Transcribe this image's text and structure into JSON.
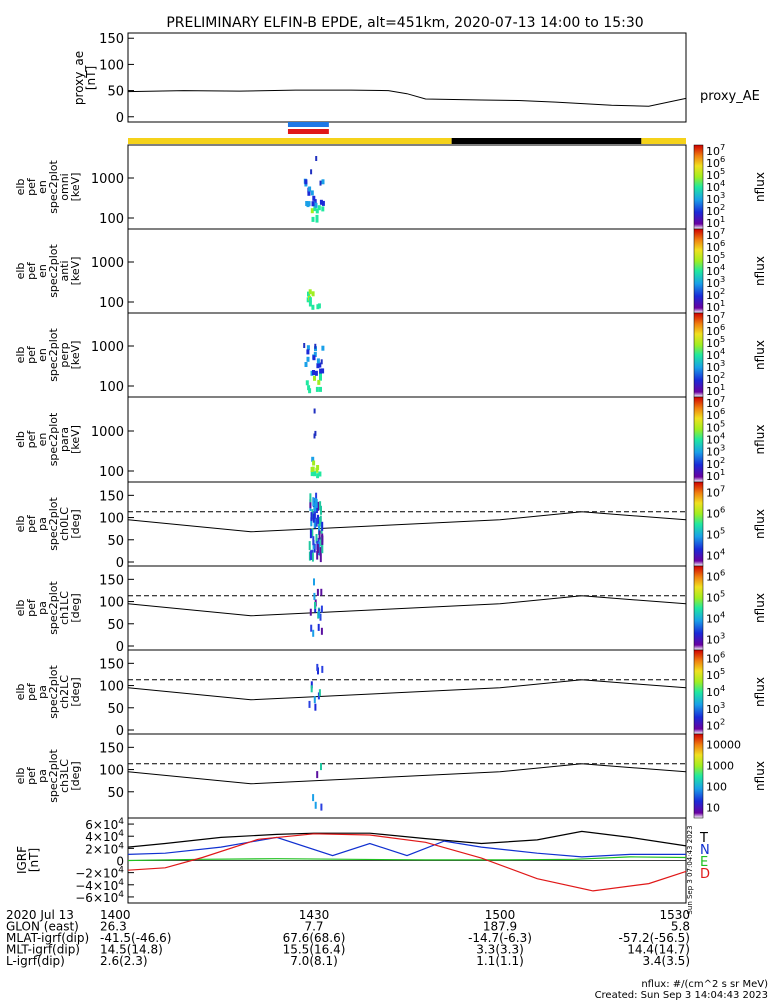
{
  "title": "PRELIMINARY ELFIN-B EPDE, alt=451km, 2020-07-13 14:00 to 15:30",
  "x_ticks": [
    "1400",
    "1430",
    "1500",
    "1530"
  ],
  "x_tick_hours": [
    0,
    0.5,
    1.0,
    1.5
  ],
  "footer": {
    "rows": [
      {
        "label": "2020 Jul 13",
        "values": [
          "1400",
          "1430",
          "1500",
          "1530"
        ]
      },
      {
        "label": "GLON (east)",
        "values": [
          "26.3",
          "7.7",
          "187.9",
          "5.8"
        ]
      },
      {
        "label": "MLAT-igrf(dip)",
        "values": [
          "-41.5(-46.6)",
          "67.6(68.6)",
          "-14.7(-6.3)",
          "-57.2(-56.5)"
        ]
      },
      {
        "label": "MLT-igrf(dip)",
        "values": [
          "14.5(14.8)",
          "15.5(16.4)",
          "3.3(3.3)",
          "14.4(14.7)"
        ]
      },
      {
        "label": "L-igrf(dip)",
        "values": [
          "2.6(2.3)",
          "7.0(8.1)",
          "1.1(1.1)",
          "3.4(3.5)"
        ]
      }
    ],
    "units_note": "nflux: #/(cm^2 s sr MeV)",
    "created": "Created: Sun Sep  3 14:04:43 2023",
    "side_stamp": "Sun Sep  3 07:04:43 2023"
  },
  "colors": {
    "yellow_bar": "#f5d21a",
    "black_bar": "#000000",
    "blue_marker": "#1e78e6",
    "red_marker": "#e01818",
    "T": "#000000",
    "N": "#1030d0",
    "E": "#20c020",
    "D": "#e01818"
  },
  "chart_data": [
    {
      "type": "line",
      "panel": "proxy_ae",
      "ylabel": "proxy_ae",
      "yunit": "[nT]",
      "legend": "proxy_AE",
      "y_ticks": [
        "0",
        "50",
        "100",
        "150"
      ],
      "ylim": [
        -10,
        160
      ],
      "x": [
        0,
        0.15,
        0.3,
        0.45,
        0.6,
        0.7,
        0.75,
        0.8,
        0.95,
        1.05,
        1.15,
        1.3,
        1.4,
        1.5
      ],
      "values": [
        48,
        50,
        49,
        51,
        51,
        50,
        44,
        34,
        32,
        31,
        28,
        22,
        20,
        35
      ]
    },
    {
      "type": "bar",
      "panel": "orbit_bar",
      "segments": [
        {
          "color": "yellow",
          "from": 0,
          "to": 0.87
        },
        {
          "color": "black",
          "from": 0.87,
          "to": 1.38
        },
        {
          "color": "yellow",
          "from": 1.38,
          "to": 1.5
        }
      ],
      "markers": [
        {
          "color": "blue",
          "from": 0.43,
          "to": 0.54
        },
        {
          "color": "red",
          "from": 0.43,
          "to": 0.54
        }
      ]
    },
    {
      "type": "heatmap",
      "panel": "spec_omni",
      "ylabel": [
        "elb",
        "pef",
        "en",
        "spec2plot",
        "omni",
        "[keV]"
      ],
      "y_ticks": [
        "100",
        "1000"
      ],
      "colorbar_ticks": [
        "10^1",
        "10^2",
        "10^3",
        "10^4",
        "10^5",
        "10^6",
        "10^7"
      ],
      "colorbar_label": "nflux",
      "x_range": [
        0.47,
        0.53
      ]
    },
    {
      "type": "heatmap",
      "panel": "spec_anti",
      "ylabel": [
        "elb",
        "pef",
        "en",
        "spec2plot",
        "anti",
        "[keV]"
      ],
      "y_ticks": [
        "100",
        "1000"
      ],
      "colorbar_ticks": [
        "10^1",
        "10^2",
        "10^3",
        "10^4",
        "10^5",
        "10^6",
        "10^7"
      ],
      "colorbar_label": "nflux",
      "x_range": [
        0.48,
        0.52
      ]
    },
    {
      "type": "heatmap",
      "panel": "spec_perp",
      "ylabel": [
        "elb",
        "pef",
        "en",
        "spec2plot",
        "perp",
        "[keV]"
      ],
      "y_ticks": [
        "100",
        "1000"
      ],
      "colorbar_ticks": [
        "10^1",
        "10^2",
        "10^3",
        "10^4",
        "10^5",
        "10^6",
        "10^7"
      ],
      "colorbar_label": "nflux",
      "x_range": [
        0.47,
        0.53
      ]
    },
    {
      "type": "heatmap",
      "panel": "spec_para",
      "ylabel": [
        "elb",
        "pef",
        "en",
        "spec2plot",
        "para",
        "[keV]"
      ],
      "y_ticks": [
        "100",
        "1000"
      ],
      "colorbar_ticks": [
        "10^1",
        "10^2",
        "10^3",
        "10^4",
        "10^5",
        "10^6",
        "10^7"
      ],
      "colorbar_label": "nflux",
      "x_range": [
        0.49,
        0.52
      ]
    },
    {
      "type": "heatmap",
      "panel": "pa_ch0",
      "ylabel": [
        "elb",
        "pef",
        "pa",
        "spec2plot",
        "ch0LC",
        "[deg]"
      ],
      "y_ticks": [
        "0",
        "50",
        "100",
        "150"
      ],
      "ylim": [
        0,
        180
      ],
      "colorbar_ticks": [
        "10^4",
        "10^5",
        "10^6",
        "10^7"
      ],
      "colorbar_label": "nflux"
    },
    {
      "type": "heatmap",
      "panel": "pa_ch1",
      "ylabel": [
        "elb",
        "pef",
        "pa",
        "spec2plot",
        "ch1LC",
        "[deg]"
      ],
      "y_ticks": [
        "0",
        "50",
        "100",
        "150"
      ],
      "ylim": [
        0,
        180
      ],
      "colorbar_ticks": [
        "10^3",
        "10^4",
        "10^5",
        "10^6"
      ],
      "colorbar_label": "nflux"
    },
    {
      "type": "heatmap",
      "panel": "pa_ch2",
      "ylabel": [
        "elb",
        "pef",
        "pa",
        "spec2plot",
        "ch2LC",
        "[deg]"
      ],
      "y_ticks": [
        "0",
        "50",
        "100",
        "150"
      ],
      "ylim": [
        0,
        180
      ],
      "colorbar_ticks": [
        "10^2",
        "10^3",
        "10^4",
        "10^5",
        "10^6"
      ],
      "colorbar_label": "nflux"
    },
    {
      "type": "heatmap",
      "panel": "pa_ch3",
      "ylabel": [
        "elb",
        "pef",
        "pa",
        "spec2plot",
        "ch3LC",
        "[deg]"
      ],
      "y_ticks": [
        "50",
        "100",
        "150"
      ],
      "ylim": [
        0,
        180
      ],
      "colorbar_ticks": [
        "10",
        "100",
        "1000",
        "10000"
      ],
      "colorbar_label": "nflux"
    },
    {
      "type": "line",
      "panel": "igrf",
      "ylabel": "IGRF",
      "yunit": "[nT]",
      "y_ticks": [
        "6×10^4",
        "4×10^4",
        "2×10^4",
        "0",
        "−2×10^4",
        "−4×10^4",
        "−6×10^4"
      ],
      "ylim": [
        -70000,
        70000
      ],
      "series": [
        {
          "name": "T",
          "x": [
            0,
            0.1,
            0.25,
            0.4,
            0.5,
            0.65,
            0.8,
            0.95,
            1.1,
            1.22,
            1.35,
            1.5
          ],
          "values": [
            22000,
            28000,
            38000,
            43000,
            45000,
            45000,
            36000,
            28000,
            34000,
            48000,
            38000,
            24000
          ]
        },
        {
          "name": "N",
          "x": [
            0,
            0.1,
            0.25,
            0.4,
            0.55,
            0.65,
            0.75,
            0.85,
            0.95,
            1.1,
            1.22,
            1.35,
            1.5
          ],
          "values": [
            10000,
            12000,
            22000,
            38000,
            8000,
            28000,
            8000,
            32000,
            22000,
            12000,
            6000,
            10000,
            10000
          ]
        },
        {
          "name": "E",
          "x": [
            0,
            0.2,
            0.4,
            0.6,
            0.8,
            1.0,
            1.2,
            1.35,
            1.5
          ],
          "values": [
            0,
            2000,
            3000,
            2000,
            1000,
            1000,
            2000,
            6000,
            5000
          ]
        },
        {
          "name": "D",
          "x": [
            0,
            0.1,
            0.2,
            0.35,
            0.5,
            0.65,
            0.8,
            0.95,
            1.1,
            1.25,
            1.4,
            1.5
          ],
          "values": [
            -16000,
            -12000,
            5000,
            35000,
            44000,
            42000,
            30000,
            4000,
            -30000,
            -50000,
            -38000,
            -18000
          ]
        }
      ]
    }
  ]
}
